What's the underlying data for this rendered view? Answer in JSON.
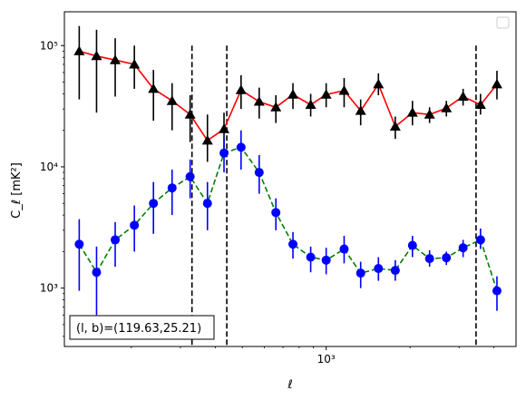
{
  "chart_data": {
    "type": "line",
    "xscale": "log",
    "yscale": "log",
    "xlim": [
      115,
      4800
    ],
    "ylim": [
      330,
      190000
    ],
    "xlabel": "ℓ",
    "ylabel": "C_ℓ [mK²]",
    "xticks": [
      {
        "value": 1000,
        "label": "10³"
      }
    ],
    "yticks": [
      {
        "value": 1000,
        "label": "10³"
      },
      {
        "value": 10000,
        "label": "10⁴"
      },
      {
        "value": 100000,
        "label": "10⁵"
      }
    ],
    "grid": false,
    "legend": "top-right (empty)",
    "annotation": "(l, b)=(119.63,25.21)",
    "vlines": [
      {
        "x": 330,
        "y_top": 100000
      },
      {
        "x": 440,
        "y_top": 100000
      },
      {
        "x": 3450,
        "y_top": 100000
      }
    ],
    "series": [
      {
        "line_color": "#ff0000",
        "marker_color": "#000000",
        "marker": "triangle",
        "line_style": "solid",
        "points": [
          {
            "x": 130,
            "y": 90000,
            "lo": 36000,
            "hi": 145000
          },
          {
            "x": 150,
            "y": 82000,
            "lo": 28000,
            "hi": 135000
          },
          {
            "x": 175,
            "y": 76000,
            "lo": 38000,
            "hi": 115000
          },
          {
            "x": 205,
            "y": 70000,
            "lo": 44000,
            "hi": 100000
          },
          {
            "x": 240,
            "y": 44000,
            "lo": 24000,
            "hi": 63000
          },
          {
            "x": 280,
            "y": 35000,
            "lo": 20000,
            "hi": 49000
          },
          {
            "x": 325,
            "y": 27000,
            "lo": 16000,
            "hi": 39000
          },
          {
            "x": 375,
            "y": 16500,
            "lo": 11000,
            "hi": 27000
          },
          {
            "x": 430,
            "y": 20500,
            "lo": 14000,
            "hi": 28000
          },
          {
            "x": 495,
            "y": 43000,
            "lo": 30000,
            "hi": 57000
          },
          {
            "x": 575,
            "y": 34500,
            "lo": 25000,
            "hi": 45000
          },
          {
            "x": 660,
            "y": 31000,
            "lo": 23000,
            "hi": 39000
          },
          {
            "x": 760,
            "y": 39500,
            "lo": 30000,
            "hi": 49000
          },
          {
            "x": 880,
            "y": 32500,
            "lo": 26000,
            "hi": 40000
          },
          {
            "x": 1000,
            "y": 39500,
            "lo": 31000,
            "hi": 49000
          },
          {
            "x": 1160,
            "y": 42500,
            "lo": 31000,
            "hi": 54000
          },
          {
            "x": 1330,
            "y": 29000,
            "lo": 22000,
            "hi": 36000
          },
          {
            "x": 1540,
            "y": 48000,
            "lo": 39000,
            "hi": 59000
          },
          {
            "x": 1770,
            "y": 21500,
            "lo": 17000,
            "hi": 26000
          },
          {
            "x": 2040,
            "y": 28000,
            "lo": 22000,
            "hi": 35000
          },
          {
            "x": 2350,
            "y": 27000,
            "lo": 23000,
            "hi": 31000
          },
          {
            "x": 2700,
            "y": 30500,
            "lo": 26000,
            "hi": 35000
          },
          {
            "x": 3100,
            "y": 38000,
            "lo": 32000,
            "hi": 44000
          },
          {
            "x": 3580,
            "y": 32500,
            "lo": 27000,
            "hi": 40000
          },
          {
            "x": 4100,
            "y": 48000,
            "lo": 36000,
            "hi": 62000
          }
        ]
      },
      {
        "line_color": "#008000",
        "marker_color": "#0000ff",
        "marker": "circle",
        "line_style": "dashed",
        "points": [
          {
            "x": 130,
            "y": 2300,
            "lo": 950,
            "hi": 3700
          },
          {
            "x": 150,
            "y": 1350,
            "lo": 600,
            "hi": 2200
          },
          {
            "x": 175,
            "y": 2500,
            "lo": 1500,
            "hi": 3500
          },
          {
            "x": 205,
            "y": 3300,
            "lo": 2000,
            "hi": 4800
          },
          {
            "x": 240,
            "y": 5000,
            "lo": 2800,
            "hi": 7500
          },
          {
            "x": 280,
            "y": 6700,
            "lo": 4000,
            "hi": 9500
          },
          {
            "x": 325,
            "y": 8300,
            "lo": 5500,
            "hi": 11500
          },
          {
            "x": 375,
            "y": 5000,
            "lo": 3000,
            "hi": 7500
          },
          {
            "x": 430,
            "y": 13000,
            "lo": 9000,
            "hi": 17500
          },
          {
            "x": 495,
            "y": 14500,
            "lo": 9500,
            "hi": 20000
          },
          {
            "x": 575,
            "y": 9000,
            "lo": 6000,
            "hi": 12500
          },
          {
            "x": 660,
            "y": 4200,
            "lo": 3000,
            "hi": 5500
          },
          {
            "x": 760,
            "y": 2300,
            "lo": 1750,
            "hi": 2900
          },
          {
            "x": 880,
            "y": 1800,
            "lo": 1350,
            "hi": 2200
          },
          {
            "x": 1000,
            "y": 1700,
            "lo": 1300,
            "hi": 2150
          },
          {
            "x": 1160,
            "y": 2100,
            "lo": 1600,
            "hi": 2700
          },
          {
            "x": 1330,
            "y": 1330,
            "lo": 1000,
            "hi": 1650
          },
          {
            "x": 1540,
            "y": 1450,
            "lo": 1150,
            "hi": 1800
          },
          {
            "x": 1770,
            "y": 1400,
            "lo": 1150,
            "hi": 1700
          },
          {
            "x": 2040,
            "y": 2250,
            "lo": 1800,
            "hi": 2700
          },
          {
            "x": 2350,
            "y": 1750,
            "lo": 1500,
            "hi": 2050
          },
          {
            "x": 2700,
            "y": 1780,
            "lo": 1550,
            "hi": 2000
          },
          {
            "x": 3100,
            "y": 2150,
            "lo": 1800,
            "hi": 2500
          },
          {
            "x": 3580,
            "y": 2500,
            "lo": 2100,
            "hi": 3100
          },
          {
            "x": 4100,
            "y": 950,
            "lo": 650,
            "hi": 1250
          }
        ]
      }
    ]
  }
}
